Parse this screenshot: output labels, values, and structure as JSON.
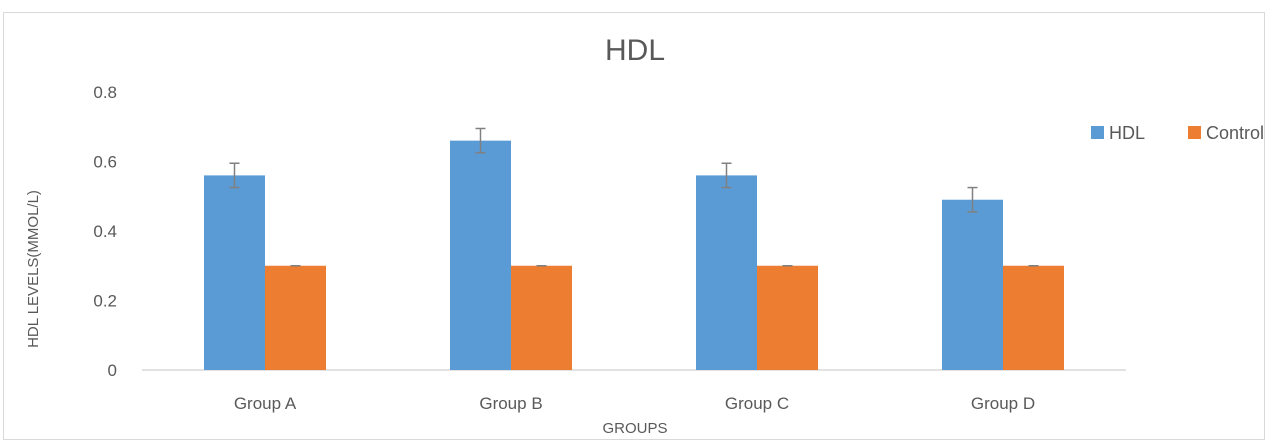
{
  "chart_data": {
    "type": "bar",
    "title": "HDL",
    "xlabel": "GROUPS",
    "ylabel": "HDL LEVELS(MMOL/L)",
    "categories": [
      "Group A",
      "Group B",
      "Group C",
      "Group D"
    ],
    "series": [
      {
        "name": "HDL",
        "color": "#5b9bd5",
        "values": [
          0.56,
          0.66,
          0.56,
          0.49
        ],
        "error": [
          0.035,
          0.035,
          0.035,
          0.035
        ]
      },
      {
        "name": "Control",
        "color": "#ed7d31",
        "values": [
          0.3,
          0.3,
          0.3,
          0.3
        ],
        "error": [
          0.0,
          0.0,
          0.0,
          0.0
        ]
      }
    ],
    "ylim": [
      0,
      0.8
    ],
    "yticks": [
      "0",
      "0.2",
      "0.4",
      "0.6",
      "0.8"
    ],
    "grid": false,
    "legend_position": "right",
    "error_bar_color": "#808080",
    "axis_color": "#d9d9d9"
  }
}
